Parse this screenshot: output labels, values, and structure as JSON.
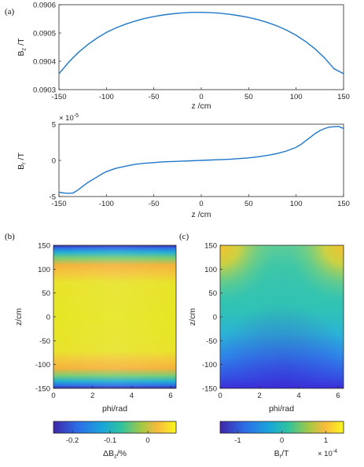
{
  "panel_labels": {
    "a": "(a)",
    "b": "(b)",
    "c": "(c)"
  },
  "chart_data": [
    {
      "type": "line",
      "panel": "(a) top",
      "xlabel": "z /cm",
      "ylabel": "B_z /T",
      "xlim": [
        -150,
        150
      ],
      "ylim": [
        0.0903,
        0.0906
      ],
      "xticks": [
        "-150",
        "-100",
        "-50",
        "0",
        "50",
        "100",
        "150"
      ],
      "yticks": [
        "0.0903",
        "0.0904",
        "0.0905",
        "0.0906"
      ],
      "color": "#1f77c8",
      "x": [
        -150,
        -140,
        -130,
        -120,
        -110,
        -100,
        -90,
        -80,
        -70,
        -60,
        -50,
        -40,
        -30,
        -20,
        -10,
        0,
        10,
        20,
        30,
        40,
        50,
        60,
        70,
        80,
        90,
        100,
        110,
        120,
        130,
        140,
        150
      ],
      "y": [
        0.090356,
        0.090396,
        0.09043,
        0.090458,
        0.090482,
        0.090502,
        0.090518,
        0.090531,
        0.090542,
        0.090551,
        0.090558,
        0.090564,
        0.090568,
        0.090571,
        0.090573,
        0.090573,
        0.090572,
        0.09057,
        0.090566,
        0.090561,
        0.090555,
        0.090547,
        0.090537,
        0.090525,
        0.09051,
        0.090492,
        0.09047,
        0.090444,
        0.090412,
        0.090374,
        0.090356
      ]
    },
    {
      "type": "line",
      "panel": "(a) bottom",
      "xlabel": "z /cm",
      "ylabel": "B_r /T",
      "scale_label": "× 10^-5",
      "xlim": [
        -150,
        150
      ],
      "ylim": [
        -5,
        5
      ],
      "xticks": [
        "-150",
        "-100",
        "-50",
        "0",
        "50",
        "100",
        "150"
      ],
      "yticks": [
        "-5",
        "0",
        "5"
      ],
      "color": "#1f77c8",
      "x": [
        -150,
        -145,
        -140,
        -135,
        -130,
        -125,
        -120,
        -115,
        -110,
        -105,
        -100,
        -90,
        -80,
        -70,
        -60,
        -50,
        -40,
        -30,
        -20,
        -10,
        0,
        10,
        20,
        30,
        40,
        50,
        60,
        70,
        80,
        90,
        100,
        105,
        110,
        115,
        120,
        125,
        130,
        135,
        140,
        145,
        150
      ],
      "y": [
        -4.4,
        -4.5,
        -4.55,
        -4.5,
        -4.1,
        -3.6,
        -3.1,
        -2.7,
        -2.3,
        -1.9,
        -1.55,
        -1.1,
        -0.8,
        -0.55,
        -0.4,
        -0.3,
        -0.2,
        -0.15,
        -0.1,
        -0.05,
        0.0,
        0.05,
        0.1,
        0.15,
        0.25,
        0.35,
        0.5,
        0.7,
        0.95,
        1.3,
        1.8,
        2.2,
        2.7,
        3.2,
        3.7,
        4.1,
        4.4,
        4.6,
        4.65,
        4.7,
        4.4
      ]
    },
    {
      "type": "heatmap",
      "panel": "(b)",
      "xlabel": "phi/rad",
      "ylabel": "z/cm",
      "xlim": [
        0,
        6.28
      ],
      "ylim": [
        -150,
        150
      ],
      "xticks": [
        "0",
        "2",
        "4",
        "6"
      ],
      "yticks": [
        "150",
        "100",
        "50",
        "0",
        "-50",
        "-100",
        "-150"
      ],
      "colorbar_label": "ΔB_z/%",
      "colorbar_range": [
        -0.25,
        0.075
      ],
      "colorbar_ticks": [
        "-0.2",
        "-0.1",
        "0"
      ]
    },
    {
      "type": "heatmap",
      "panel": "(c)",
      "xlabel": "phi/rad",
      "ylabel": "z/cm",
      "xlim": [
        0,
        6.28
      ],
      "ylim": [
        -150,
        150
      ],
      "xticks": [
        "0",
        "2",
        "4",
        "6"
      ],
      "yticks": [
        "150",
        "100",
        "50",
        "0",
        "-50",
        "-100",
        "-150"
      ],
      "colorbar_label": "B_r/T",
      "colorbar_range": [
        -1.4,
        1.4
      ],
      "colorbar_ticks": [
        "-1",
        "0",
        "1"
      ],
      "colorbar_scale": "× 10^-4"
    }
  ]
}
